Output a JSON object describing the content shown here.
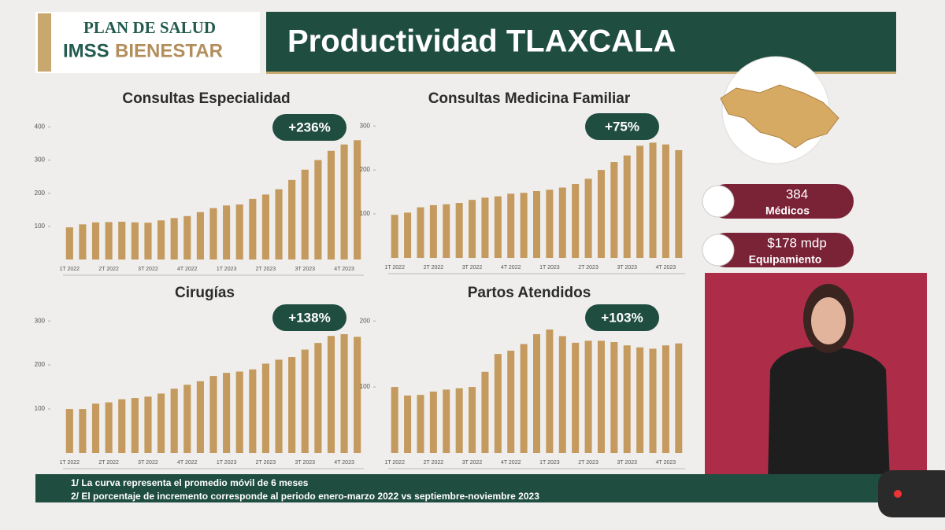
{
  "header": {
    "logo_line1": "PLAN DE SALUD",
    "logo_line2a": "IMSS",
    "logo_line2b": "BIENESTAR",
    "title": "Productividad TLAXCALA"
  },
  "sidebar": {
    "medicos_value": "384",
    "medicos_label": "Médicos",
    "equipamiento_value": "$178 mdp",
    "equipamiento_label": "Equipamiento"
  },
  "footnotes": [
    "1/ La curva representa el promedio móvil de 6 meses",
    "2/ El porcentaje de incremento corresponde al periodo enero-marzo 2022 vs septiembre-noviembre 2023"
  ],
  "chart_data": [
    {
      "type": "bar",
      "title": "Consultas Especialidad",
      "annotation": "+236%",
      "color": "#c49a5e",
      "categories": [
        "1T 2022",
        null,
        null,
        "2T 2022",
        null,
        null,
        "3T 2022",
        null,
        null,
        "4T 2022",
        null,
        null,
        "1T 2023",
        null,
        null,
        "2T 2023",
        null,
        null,
        "3T 2023",
        null,
        null,
        "4T 2023",
        null
      ],
      "values": [
        97,
        106,
        112,
        113,
        114,
        112,
        111,
        118,
        125,
        131,
        143,
        155,
        163,
        166,
        183,
        196,
        212,
        240,
        271,
        300,
        328,
        347,
        360
      ],
      "ylim": [
        0,
        420
      ],
      "yticks": [
        100,
        200,
        300,
        400
      ]
    },
    {
      "type": "bar",
      "title": "Consultas Medicina Familiar",
      "annotation": "+75%",
      "color": "#c49a5e",
      "categories": [
        "1T 2022",
        null,
        null,
        "2T 2022",
        null,
        null,
        "3T 2022",
        null,
        null,
        "4T 2022",
        null,
        null,
        "1T 2023",
        null,
        null,
        "2T 2023",
        null,
        null,
        "3T 2023",
        null,
        null,
        "4T 2023",
        null
      ],
      "values": [
        98,
        103,
        115,
        120,
        122,
        125,
        132,
        137,
        140,
        146,
        148,
        152,
        155,
        160,
        168,
        180,
        200,
        218,
        233,
        255,
        262,
        258,
        245
      ],
      "ylim": [
        0,
        320
      ],
      "yticks": [
        100,
        200,
        300
      ]
    },
    {
      "type": "bar",
      "title": "Cirugías",
      "annotation": "+138%",
      "color": "#c49a5e",
      "categories": [
        "1T 2022",
        null,
        null,
        "2T 2022",
        null,
        null,
        "3T 2022",
        null,
        null,
        "4T 2022",
        null,
        null,
        "1T 2023",
        null,
        null,
        "2T 2023",
        null,
        null,
        "3T 2023",
        null,
        null,
        "4T 2023",
        null
      ],
      "values": [
        100,
        100,
        112,
        115,
        122,
        125,
        128,
        135,
        146,
        155,
        163,
        175,
        182,
        185,
        190,
        203,
        212,
        218,
        235,
        250,
        266,
        270,
        264
      ],
      "ylim": [
        0,
        320
      ],
      "yticks": [
        100,
        200,
        300
      ]
    },
    {
      "type": "bar",
      "title": "Partos Atendidos",
      "annotation": "+103%",
      "color": "#c49a5e",
      "categories": [
        "1T 2022",
        null,
        null,
        "2T 2022",
        null,
        null,
        "3T 2022",
        null,
        null,
        "4T 2022",
        null,
        null,
        "1T 2023",
        null,
        null,
        "2T 2023",
        null,
        null,
        "3T 2023",
        null,
        null,
        "4T 2023",
        null
      ],
      "values": [
        100,
        87,
        88,
        93,
        96,
        98,
        100,
        123,
        150,
        155,
        165,
        180,
        187,
        177,
        167,
        170,
        170,
        168,
        163,
        160,
        158,
        163,
        166
      ],
      "ylim": [
        0,
        230
      ],
      "yticks": [
        100,
        200
      ]
    }
  ]
}
